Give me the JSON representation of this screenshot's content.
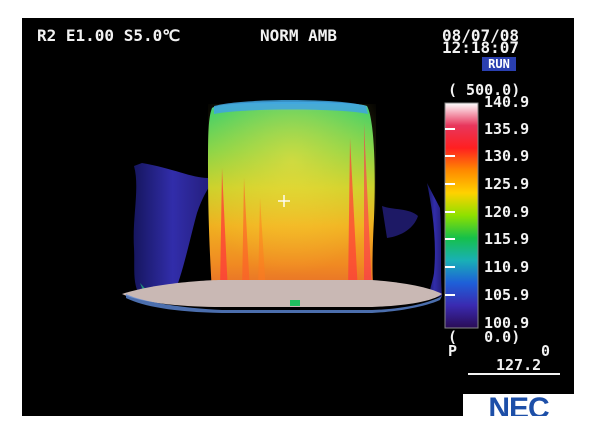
{
  "header": {
    "status_left": "R2 E1.00 S5.0℃",
    "mode": "NORM AMB",
    "date": "08/07/08",
    "time": "12:18:07",
    "run_badge": "RUN"
  },
  "scale": {
    "range_top": "( 500.0)",
    "labels": [
      "140.9",
      "135.9",
      "130.9",
      "125.9",
      "120.9",
      "115.9",
      "110.9",
      "105.9",
      "100.9"
    ],
    "range_bottom": "(   0.0)",
    "p_label": "P",
    "p_value": "0",
    "cursor_value": "127.2",
    "colors": [
      "#ffffff",
      "#e8365c",
      "#ff2020",
      "#ff8a00",
      "#ffd200",
      "#8ee000",
      "#16c04a",
      "#19b0b6",
      "#1e5fd8",
      "#3a2ab0",
      "#2a0c55"
    ]
  },
  "brand": {
    "logo_text": "NEC",
    "logo_color": "#1d4fa8"
  },
  "image": {
    "crosshair_icon": "crosshair-icon"
  }
}
